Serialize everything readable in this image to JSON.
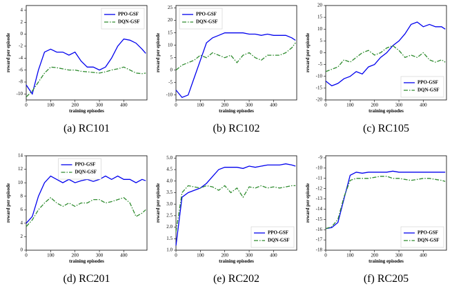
{
  "chart_data": [
    {
      "type": "line",
      "caption": "(a) RC101",
      "x_label": "training episodes",
      "y_label": "reward per episode",
      "x": [
        0,
        25,
        50,
        75,
        100,
        125,
        150,
        175,
        200,
        225,
        250,
        275,
        300,
        325,
        350,
        375,
        400,
        425,
        450,
        475,
        490
      ],
      "series": [
        {
          "name": "PPO-GSF",
          "color": "#0000ee",
          "style": "solid",
          "values": [
            -8.5,
            -10,
            -6,
            -3,
            -2.5,
            -3,
            -3,
            -3.5,
            -3,
            -4.5,
            -5.5,
            -5.5,
            -6,
            -5.5,
            -4,
            -2,
            -0.8,
            -1,
            -1.5,
            -2.5,
            -3.2
          ]
        },
        {
          "name": "DQN-GSF",
          "color": "#2e8b2e",
          "style": "dashdot",
          "values": [
            -10.5,
            -9.5,
            -8,
            -6.5,
            -5.5,
            -5.6,
            -5.8,
            -6,
            -6,
            -6.2,
            -6.3,
            -6.4,
            -6.5,
            -6.3,
            -6,
            -5.8,
            -5.5,
            -6,
            -6.5,
            -6.6,
            -6.5
          ]
        }
      ],
      "xlim": [
        0,
        495
      ],
      "ylim": [
        -11,
        4.8
      ],
      "xticks": [
        0,
        100,
        200,
        300,
        400
      ],
      "yticks": [
        -10,
        -8,
        -6,
        -4,
        -2,
        0,
        2,
        4
      ],
      "legend": "upper right"
    },
    {
      "type": "line",
      "caption": "(b) RC102",
      "x_label": "training episodes",
      "y_label": "reward per episode",
      "x": [
        0,
        25,
        50,
        75,
        100,
        125,
        150,
        175,
        200,
        225,
        250,
        275,
        300,
        325,
        350,
        375,
        400,
        425,
        450,
        475,
        490
      ],
      "series": [
        {
          "name": "PPO-GSF",
          "color": "#0000ee",
          "style": "solid",
          "values": [
            -8,
            -11,
            -10,
            -3,
            4,
            11,
            13,
            14,
            15,
            15,
            15,
            15,
            14.5,
            14.5,
            14,
            14.5,
            14,
            14,
            14,
            13,
            12
          ]
        },
        {
          "name": "DQN-GSF",
          "color": "#2e8b2e",
          "style": "dashdot",
          "values": [
            0,
            2,
            3,
            4,
            6,
            5,
            7,
            6,
            5,
            6,
            3,
            6,
            7,
            5,
            4,
            6,
            6,
            6,
            7,
            9,
            11
          ]
        }
      ],
      "xlim": [
        0,
        495
      ],
      "ylim": [
        -12,
        26
      ],
      "xticks": [
        0,
        100,
        200,
        300,
        400
      ],
      "yticks": [
        -10,
        -5,
        0,
        5,
        10,
        15,
        20,
        25
      ],
      "legend": "upper left"
    },
    {
      "type": "line",
      "caption": "(c) RC105",
      "x_label": "training episodes",
      "y_label": "reward per episode",
      "x": [
        0,
        25,
        50,
        75,
        100,
        125,
        150,
        175,
        200,
        225,
        250,
        275,
        300,
        325,
        350,
        375,
        400,
        425,
        450,
        475,
        490
      ],
      "series": [
        {
          "name": "PPO-GSF",
          "color": "#0000ee",
          "style": "solid",
          "values": [
            -12,
            -14,
            -13,
            -11,
            -10,
            -8,
            -9,
            -6,
            -5,
            -2,
            0,
            3,
            5,
            8,
            12,
            13,
            11,
            12,
            11,
            11,
            10
          ]
        },
        {
          "name": "DQN-GSF",
          "color": "#2e8b2e",
          "style": "dashdot",
          "values": [
            -8,
            -7,
            -6,
            -3,
            -4,
            -2,
            0,
            1,
            -1,
            0,
            2,
            3,
            1,
            -2,
            -1,
            -2,
            0,
            -3,
            -4,
            -3,
            -4
          ]
        }
      ],
      "xlim": [
        0,
        495
      ],
      "ylim": [
        -20,
        20
      ],
      "xticks": [
        0,
        100,
        200,
        300,
        400
      ],
      "yticks": [
        -20,
        -15,
        -10,
        -5,
        0,
        5,
        10,
        15,
        20
      ],
      "legend": "lower right"
    },
    {
      "type": "line",
      "caption": "(d) RC201",
      "x_label": "training episodes",
      "y_label": "reward per episode",
      "x": [
        0,
        25,
        50,
        75,
        100,
        125,
        150,
        175,
        200,
        225,
        250,
        275,
        300,
        325,
        350,
        375,
        400,
        425,
        450,
        475,
        490
      ],
      "series": [
        {
          "name": "PPO-GSF",
          "color": "#0000ee",
          "style": "solid",
          "values": [
            4,
            5,
            8,
            10,
            11,
            10.5,
            10,
            10.5,
            10,
            10.3,
            10.5,
            10.2,
            10.5,
            11,
            10.5,
            11,
            10.5,
            10.5,
            10,
            10.5,
            10.3
          ]
        },
        {
          "name": "DQN-GSF",
          "color": "#2e8b2e",
          "style": "dashdot",
          "values": [
            3.5,
            4.5,
            6,
            7,
            7.8,
            7,
            6.5,
            7,
            6.5,
            7,
            7,
            7.5,
            7.5,
            7,
            7.2,
            7.5,
            7.8,
            7,
            5,
            5.5,
            6
          ]
        }
      ],
      "xlim": [
        0,
        495
      ],
      "ylim": [
        0,
        14
      ],
      "xticks": [
        0,
        100,
        200,
        300,
        400
      ],
      "yticks": [
        0,
        2,
        4,
        6,
        8,
        10,
        12,
        14
      ],
      "legend": "upper center"
    },
    {
      "type": "line",
      "caption": "(e) RC202",
      "x_label": "training episodes",
      "y_label": "reward per episode",
      "x": [
        0,
        25,
        50,
        75,
        100,
        125,
        150,
        175,
        200,
        225,
        250,
        275,
        300,
        325,
        350,
        375,
        400,
        425,
        450,
        475,
        490
      ],
      "series": [
        {
          "name": "PPO-GSF",
          "color": "#0000ee",
          "style": "solid",
          "values": [
            1.2,
            3.3,
            3.5,
            3.6,
            3.7,
            3.9,
            4.2,
            4.5,
            4.6,
            4.6,
            4.6,
            4.55,
            4.65,
            4.6,
            4.65,
            4.7,
            4.7,
            4.7,
            4.75,
            4.7,
            4.65
          ]
        },
        {
          "name": "DQN-GSF",
          "color": "#2e8b2e",
          "style": "dashdot",
          "values": [
            1.8,
            3.5,
            3.8,
            3.75,
            3.7,
            3.8,
            3.75,
            3.6,
            3.8,
            3.5,
            3.7,
            3.3,
            3.75,
            3.7,
            3.8,
            3.7,
            3.75,
            3.7,
            3.75,
            3.8,
            3.8
          ]
        }
      ],
      "xlim": [
        0,
        495
      ],
      "ylim": [
        1.0,
        5.1
      ],
      "xticks": [
        0,
        100,
        200,
        300,
        400
      ],
      "yticks": [
        {
          "value": 1,
          "label": "1.0"
        },
        1.5,
        {
          "value": 2,
          "label": "2.0"
        },
        2.5,
        {
          "value": 3,
          "label": "3.0"
        },
        3.5,
        {
          "value": 4,
          "label": "4.0"
        },
        4.5,
        {
          "value": 5,
          "label": "5.0"
        }
      ],
      "legend": "lower right"
    },
    {
      "type": "line",
      "caption": "(f) RC205",
      "x_label": "training episodes",
      "y_label": "reward per episode",
      "x": [
        0,
        25,
        50,
        75,
        100,
        125,
        150,
        175,
        200,
        225,
        250,
        275,
        300,
        325,
        350,
        375,
        400,
        425,
        450,
        475,
        490
      ],
      "series": [
        {
          "name": "PPO-GSF",
          "color": "#0000ee",
          "style": "solid",
          "values": [
            -15.9,
            -15.8,
            -15.3,
            -13,
            -10.7,
            -10.4,
            -10.5,
            -10.4,
            -10.4,
            -10.4,
            -10.4,
            -10.3,
            -10.4,
            -10.4,
            -10.4,
            -10.4,
            -10.4,
            -10.4,
            -10.4,
            -10.4,
            -10.4
          ]
        },
        {
          "name": "DQN-GSF",
          "color": "#2e8b2e",
          "style": "dashdot",
          "values": [
            -15.9,
            -15.7,
            -15,
            -12.8,
            -11.2,
            -11,
            -11,
            -11,
            -10.9,
            -10.8,
            -10.8,
            -11,
            -11,
            -11.1,
            -11.2,
            -11.1,
            -11,
            -11,
            -11.1,
            -11.2,
            -11.3
          ]
        }
      ],
      "xlim": [
        0,
        495
      ],
      "ylim": [
        -18,
        -8.8
      ],
      "xticks": [
        0,
        100,
        200,
        300,
        400
      ],
      "yticks": [
        -18,
        -17,
        -16,
        -15,
        -14,
        -13,
        -12,
        -11,
        -10,
        -9
      ],
      "legend": "lower right"
    }
  ]
}
